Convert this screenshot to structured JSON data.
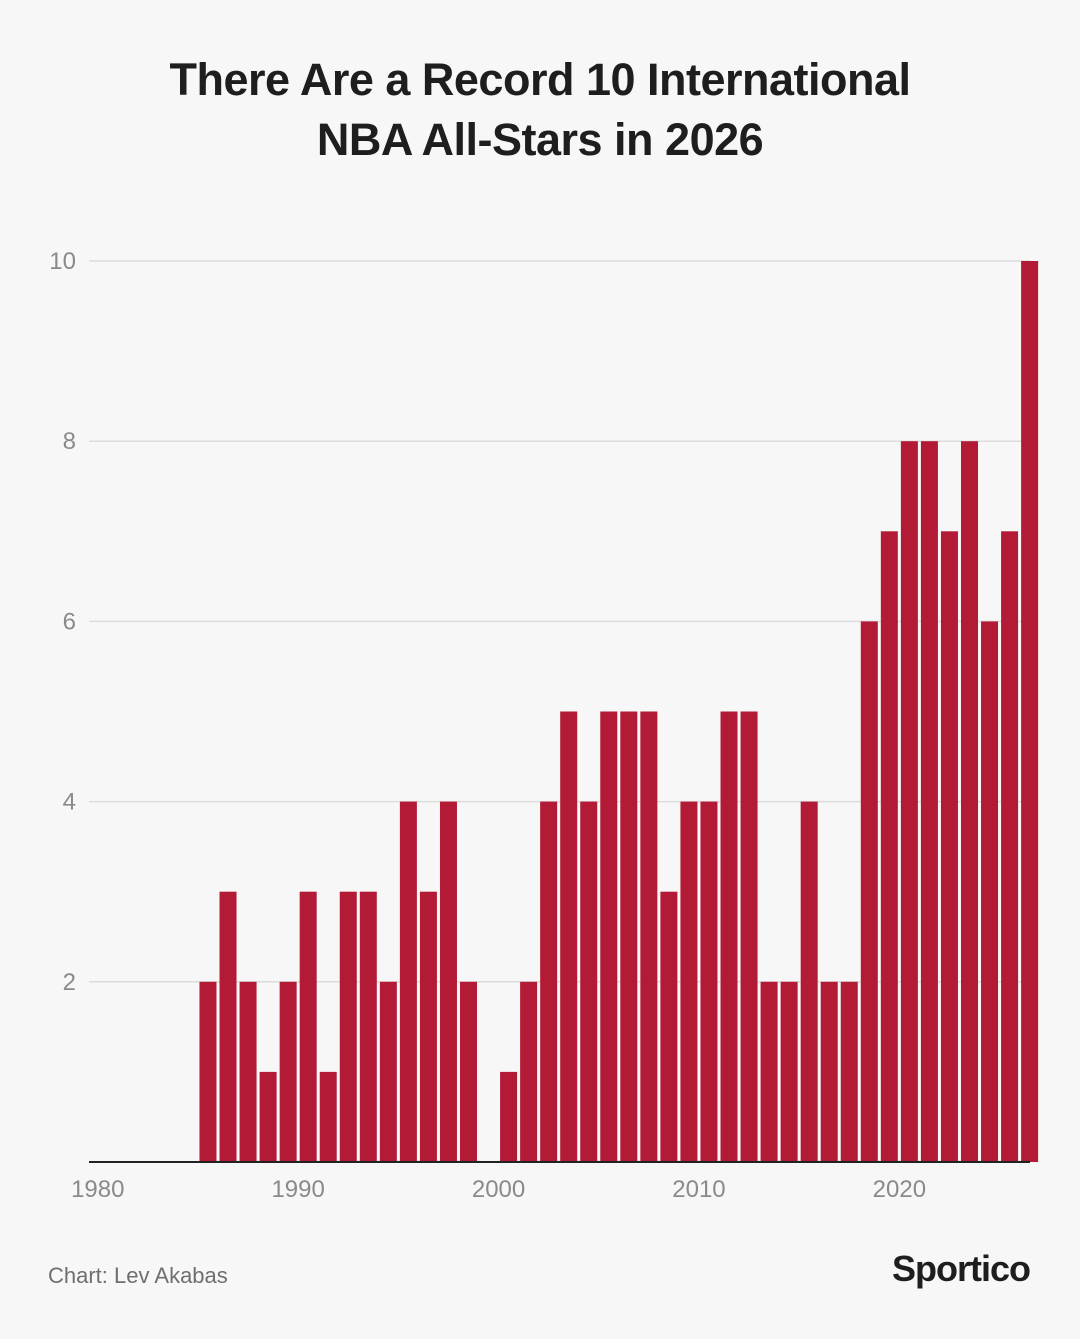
{
  "title": {
    "line1": "There Are a Record 10 International",
    "line2": "NBA All-Stars in 2026"
  },
  "footer": {
    "credit": "Chart: Lev Akabas",
    "brand": "Sportico"
  },
  "colors": {
    "bar": "#b21a35",
    "grid": "#dcdcdc",
    "axis": "#222222",
    "tick_text": "#8a8a8a"
  },
  "chart_data": {
    "type": "bar",
    "title": "There Are a Record 10 International NBA All-Stars in 2026",
    "xlabel": "",
    "ylabel": "",
    "xlim": [
      1980,
      2026
    ],
    "ylim": [
      0,
      10
    ],
    "grid": true,
    "y_ticks": [
      2,
      4,
      6,
      8,
      10
    ],
    "x_ticks": [
      1980,
      1990,
      2000,
      2010,
      2020
    ],
    "categories": [
      1985,
      1986,
      1987,
      1988,
      1989,
      1990,
      1991,
      1992,
      1993,
      1994,
      1995,
      1996,
      1997,
      1998,
      2000,
      2001,
      2002,
      2003,
      2004,
      2005,
      2006,
      2007,
      2008,
      2009,
      2010,
      2011,
      2012,
      2013,
      2014,
      2015,
      2016,
      2017,
      2018,
      2019,
      2020,
      2021,
      2022,
      2023,
      2024,
      2025,
      2026
    ],
    "values": [
      2,
      3,
      2,
      1,
      2,
      3,
      1,
      3,
      3,
      2,
      4,
      3,
      4,
      2,
      1,
      2,
      4,
      5,
      4,
      5,
      5,
      5,
      3,
      4,
      4,
      5,
      5,
      2,
      2,
      4,
      2,
      2,
      6,
      7,
      8,
      8,
      7,
      8,
      6,
      7,
      10
    ]
  }
}
